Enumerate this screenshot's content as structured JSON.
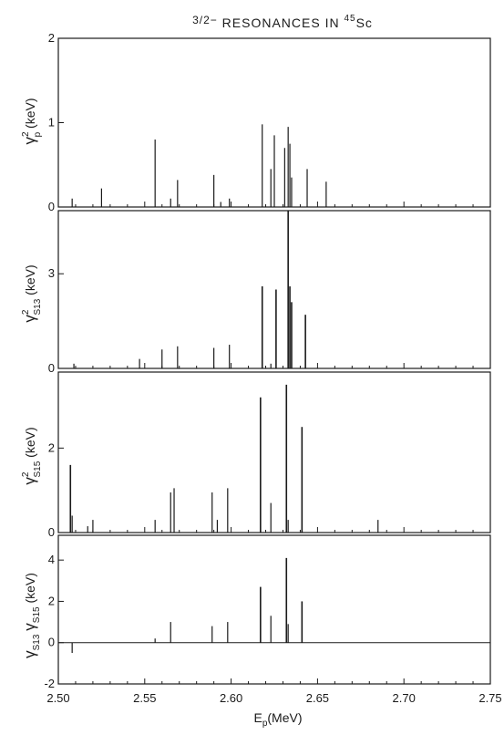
{
  "chart_data": {
    "type": "bar",
    "title": "3/2⁻ RESONANCES IN ⁴⁵Sc",
    "title_parts": {
      "prefix": "3/2",
      "sup_minus": "−",
      "middle": " RESONANCES IN ",
      "sup_mass": "45",
      "element": "Sc"
    },
    "xlabel": {
      "main": "E",
      "sub": "p",
      "units": "(MeV)"
    },
    "xlim": [
      2.5,
      2.75
    ],
    "x_ticks": [
      "2.50",
      "2.55",
      "2.60",
      "2.65",
      "2.70",
      "2.75"
    ],
    "x_tick_values": [
      2.5,
      2.55,
      2.6,
      2.65,
      2.7,
      2.75
    ],
    "grid": false,
    "panels": [
      {
        "ylabel": {
          "sym": "γ",
          "sup": "2",
          "sub": "p",
          "units": "(keV)"
        },
        "ylim": [
          0,
          2
        ],
        "y_ticks": [
          0,
          1,
          2
        ],
        "x": [
          2.508,
          2.525,
          2.556,
          2.565,
          2.569,
          2.59,
          2.594,
          2.599,
          2.618,
          2.623,
          2.625,
          2.631,
          2.633,
          2.634,
          2.635,
          2.644,
          2.655
        ],
        "values": [
          0.1,
          0.22,
          0.8,
          0.1,
          0.32,
          0.38,
          0.06,
          0.1,
          0.98,
          0.45,
          0.85,
          0.7,
          0.95,
          0.75,
          0.35,
          0.45,
          0.3
        ]
      },
      {
        "ylabel": {
          "sym": "γ",
          "sup": "2",
          "sub": "S13",
          "units": "(keV)"
        },
        "ylim": [
          0,
          5
        ],
        "y_ticks": [
          0,
          3
        ],
        "x": [
          2.509,
          2.547,
          2.56,
          2.569,
          2.59,
          2.599,
          2.618,
          2.623,
          2.626,
          2.633,
          2.634,
          2.635,
          2.643
        ],
        "values": [
          0.15,
          0.3,
          0.6,
          0.7,
          0.65,
          0.75,
          2.6,
          0.15,
          2.5,
          5.0,
          2.6,
          2.1,
          1.7
        ]
      },
      {
        "ylabel": {
          "sym": "γ",
          "sup": "2",
          "sub": "S15",
          "units": "(keV)"
        },
        "ylim": [
          0,
          3.8
        ],
        "y_ticks": [
          0,
          2
        ],
        "x": [
          2.507,
          2.508,
          2.517,
          2.52,
          2.556,
          2.565,
          2.567,
          2.589,
          2.592,
          2.598,
          2.617,
          2.623,
          2.632,
          2.633,
          2.641,
          2.685
        ],
        "values": [
          1.6,
          0.4,
          0.15,
          0.3,
          0.3,
          0.95,
          1.05,
          0.95,
          0.3,
          1.05,
          3.2,
          0.7,
          3.5,
          0.3,
          2.5,
          0.3
        ]
      },
      {
        "ylabel": {
          "sym1": "γ",
          "sub1": "S13",
          "sym2": "γ",
          "sub2": "S15",
          "units": "(keV)"
        },
        "ylim": [
          -2,
          5.2
        ],
        "y_ticks": [
          -2,
          0,
          2,
          4
        ],
        "baseline": 0,
        "x": [
          2.508,
          2.556,
          2.565,
          2.589,
          2.598,
          2.617,
          2.623,
          2.632,
          2.633,
          2.641
        ],
        "values": [
          -0.5,
          0.2,
          1.0,
          0.8,
          1.0,
          2.7,
          1.3,
          4.1,
          0.9,
          2.0
        ]
      }
    ]
  }
}
